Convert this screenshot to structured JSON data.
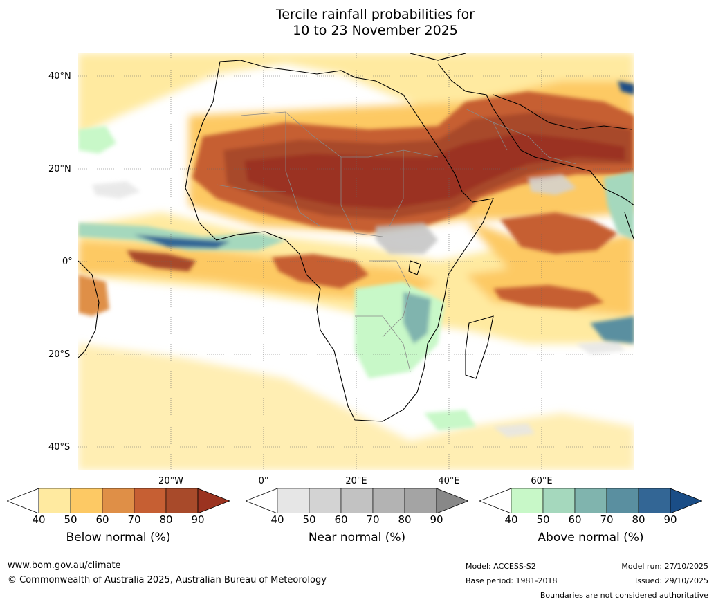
{
  "title": {
    "line1": "Tercile rainfall probabilities for",
    "line2": "10 to 23 November 2025"
  },
  "axes": {
    "lat_labels": [
      "40°N",
      "20°N",
      "0°",
      "20°S",
      "40°S"
    ],
    "lon_labels": [
      "20°W",
      "0°",
      "20°E",
      "40°E",
      "60°E"
    ]
  },
  "colorbars": [
    {
      "title": "Below normal (%)",
      "ticks": [
        "40",
        "50",
        "60",
        "70",
        "80",
        "90"
      ],
      "colors": [
        "#ffffff",
        "#ffeaa0",
        "#fdc964",
        "#df8f47",
        "#c65f33",
        "#a84a2a",
        "#9b3320"
      ]
    },
    {
      "title": "Near normal (%)",
      "ticks": [
        "40",
        "50",
        "60",
        "70",
        "80",
        "90"
      ],
      "colors": [
        "#ffffff",
        "#e6e6e6",
        "#d3d3d3",
        "#c2c2c2",
        "#b3b3b3",
        "#a4a4a4",
        "#888888"
      ]
    },
    {
      "title": "Above normal (%)",
      "ticks": [
        "40",
        "50",
        "60",
        "70",
        "80",
        "90"
      ],
      "colors": [
        "#ffffff",
        "#c8f8c8",
        "#a5d8bd",
        "#80b4ae",
        "#5a8fa0",
        "#336695",
        "#1a4d86"
      ]
    }
  ],
  "footer": {
    "website": "www.bom.gov.au/climate",
    "copyright": "© Commonwealth of Australia 2025, Australian Bureau of Meteorology",
    "model": "Model: ACCESS-S2",
    "base_period": "Base period: 1981-2018",
    "model_run": "Model run: 27/10/2025",
    "issued": "Issued: 29/10/2025",
    "disclaimer": "Boundaries are not considered authoritative"
  }
}
